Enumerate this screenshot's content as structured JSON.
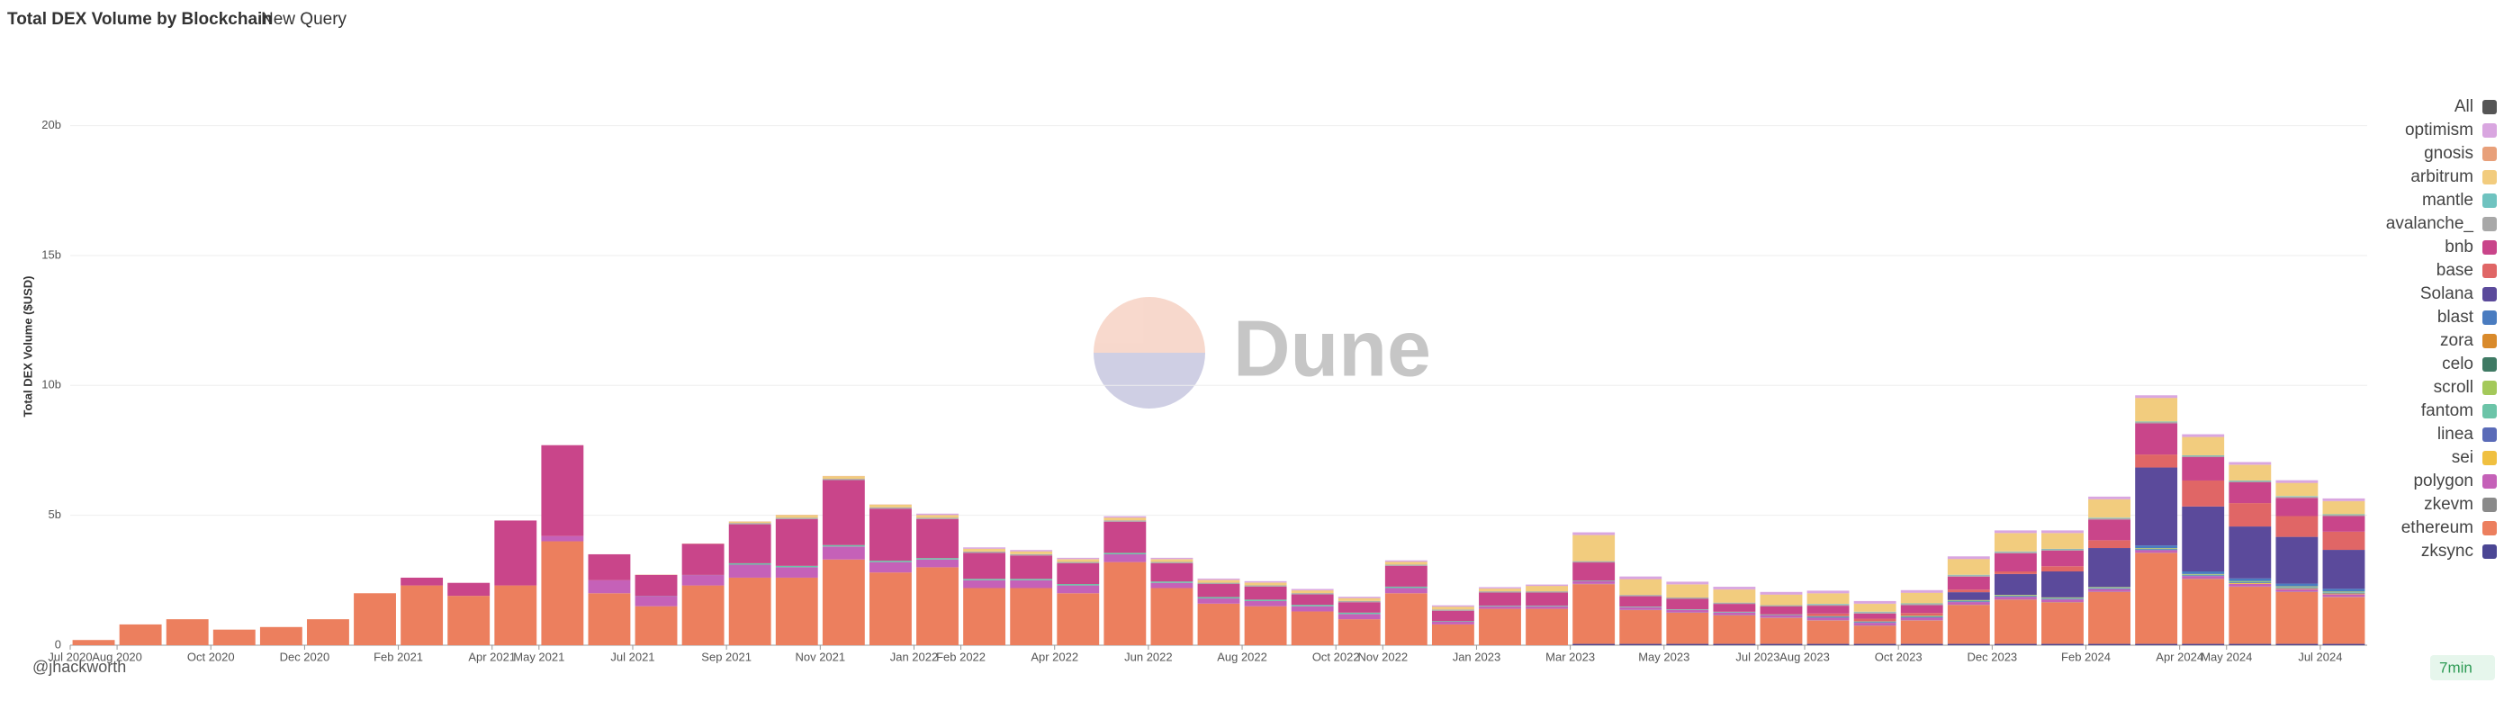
{
  "header": {
    "title": "Total DEX Volume by Blockchain",
    "tab": "New Query"
  },
  "footer": {
    "author": "@jhackworth",
    "refresh": "7min"
  },
  "chart_data": {
    "type": "stacked_bar",
    "y_label": "Total DEX Volume ($USD)",
    "watermark": "Dune",
    "legend_all": {
      "name": "All",
      "color": "#555555"
    },
    "legend_position": "right",
    "grid": true,
    "ylim": [
      0,
      23000000000.0
    ],
    "yticks": [
      0,
      {
        "value": 5000000000.0,
        "label": "5b"
      },
      {
        "value": 10000000000.0,
        "label": "10b"
      },
      {
        "value": 15000000000.0,
        "label": "15b"
      },
      {
        "value": 20000000000.0,
        "label": "20b"
      }
    ],
    "categories": [
      "Jul 2020",
      "Aug 2020",
      null,
      "Oct 2020",
      null,
      "Dec 2020",
      null,
      "Feb 2021",
      null,
      "Apr 2021",
      "May 2021",
      null,
      "Jul 2021",
      null,
      "Sep 2021",
      null,
      "Nov 2021",
      null,
      "Jan 2022",
      "Feb 2022",
      null,
      "Apr 2022",
      null,
      "Jun 2022",
      null,
      "Aug 2022",
      null,
      "Oct 2022",
      "Nov 2022",
      null,
      "Jan 2023",
      null,
      "Mar 2023",
      null,
      "May 2023",
      null,
      "Jul 2023",
      "Aug 2023",
      null,
      "Oct 2023",
      null,
      "Dec 2023",
      null,
      "Feb 2024",
      null,
      "Apr 2024",
      "May 2024",
      null,
      "Jul 2024"
    ],
    "series": [
      {
        "name": "optimism",
        "color": "#d9a6e0",
        "values": [
          0,
          0,
          0,
          0,
          0,
          0,
          0,
          0,
          0,
          0,
          0,
          0,
          0,
          0,
          0,
          0,
          0,
          0,
          50000000.0,
          50000000.0,
          50000000.0,
          50000000.0,
          50000000.0,
          50000000.0,
          50000000.0,
          50000000.0,
          50000000.0,
          50000000.0,
          50000000.0,
          50000000.0,
          50000000.0,
          50000000.0,
          100000000.0,
          100000000.0,
          100000000.0,
          100000000.0,
          100000000.0,
          100000000.0,
          100000000.0,
          100000000.0,
          100000000.0,
          100000000.0,
          100000000.0,
          100000000.0,
          100000000.0,
          100000000.0,
          100000000.0,
          100000000.0,
          100000000.0
        ]
      },
      {
        "name": "gnosis",
        "color": "#e8a07a",
        "values": [
          0,
          0,
          0,
          0,
          0,
          0,
          0,
          0,
          0,
          0,
          0,
          0,
          10000000.0,
          10000000.0,
          10000000.0,
          10000000.0,
          10000000.0,
          10000000.0,
          10000000.0,
          10000000.0,
          10000000.0,
          10000000.0,
          10000000.0,
          10000000.0,
          10000000.0,
          10000000.0,
          10000000.0,
          10000000.0,
          10000000.0,
          10000000.0,
          10000000.0,
          10000000.0,
          10000000.0,
          10000000.0,
          10000000.0,
          10000000.0,
          10000000.0,
          10000000.0,
          10000000.0,
          10000000.0,
          10000000.0,
          10000000.0,
          10000000.0,
          10000000.0,
          10000000.0,
          10000000.0,
          10000000.0,
          10000000.0,
          10000000.0
        ]
      },
      {
        "name": "arbitrum",
        "color": "#f2cc7e",
        "values": [
          0,
          0,
          0,
          0,
          0,
          0,
          0,
          0,
          0,
          0,
          0,
          0,
          0,
          0,
          50000000.0,
          100000000.0,
          100000000.0,
          100000000.0,
          100000000.0,
          100000000.0,
          100000000.0,
          100000000.0,
          100000000.0,
          100000000.0,
          100000000.0,
          100000000.0,
          100000000.0,
          100000000.0,
          100000000.0,
          100000000.0,
          100000000.0,
          200000000.0,
          1000000000.0,
          600000000.0,
          500000000.0,
          500000000.0,
          400000000.0,
          400000000.0,
          300000000.0,
          400000000.0,
          600000000.0,
          700000000.0,
          600000000.0,
          700000000.0,
          900000000.0,
          700000000.0,
          600000000.0,
          500000000.0,
          500000000.0
        ]
      },
      {
        "name": "mantle",
        "color": "#6fc3c0",
        "values": [
          0,
          0,
          0,
          0,
          0,
          0,
          0,
          0,
          0,
          0,
          0,
          0,
          0,
          0,
          0,
          0,
          0,
          0,
          0,
          0,
          0,
          0,
          0,
          0,
          0,
          0,
          0,
          0,
          0,
          0,
          0,
          0,
          0,
          0,
          0,
          0,
          0,
          20000000.0,
          20000000.0,
          20000000.0,
          20000000.0,
          20000000.0,
          20000000.0,
          20000000.0,
          20000000.0,
          20000000.0,
          20000000.0,
          20000000.0,
          20000000.0
        ]
      },
      {
        "name": "avalanche_",
        "color": "#a8a8a8",
        "values": [
          0,
          0,
          0,
          0,
          0,
          0,
          0,
          0,
          0,
          0,
          0,
          0,
          0,
          0,
          50000000.0,
          50000000.0,
          50000000.0,
          50000000.0,
          50000000.0,
          50000000.0,
          50000000.0,
          50000000.0,
          50000000.0,
          50000000.0,
          50000000.0,
          50000000.0,
          50000000.0,
          50000000.0,
          50000000.0,
          50000000.0,
          50000000.0,
          50000000.0,
          50000000.0,
          50000000.0,
          50000000.0,
          50000000.0,
          50000000.0,
          50000000.0,
          50000000.0,
          50000000.0,
          50000000.0,
          50000000.0,
          50000000.0,
          50000000.0,
          50000000.0,
          50000000.0,
          50000000.0,
          50000000.0,
          50000000.0
        ]
      },
      {
        "name": "bnb",
        "color": "#c9458a",
        "values": [
          0,
          0,
          0,
          0,
          0,
          0,
          0,
          300000000.0,
          500000000.0,
          2500000000.0,
          3500000000.0,
          1000000000.0,
          800000000.0,
          1200000000.0,
          1500000000.0,
          1800000000.0,
          2500000000.0,
          2000000000.0,
          1500000000.0,
          1000000000.0,
          900000000.0,
          800000000.0,
          1200000000.0,
          700000000.0,
          500000000.0,
          500000000.0,
          400000000.0,
          400000000.0,
          800000000.0,
          400000000.0,
          500000000.0,
          500000000.0,
          700000000.0,
          400000000.0,
          400000000.0,
          300000000.0,
          300000000.0,
          300000000.0,
          200000000.0,
          300000000.0,
          500000000.0,
          700000000.0,
          600000000.0,
          800000000.0,
          1200000000.0,
          900000000.0,
          800000000.0,
          700000000.0,
          600000000.0
        ]
      },
      {
        "name": "base",
        "color": "#e06666",
        "values": [
          0,
          0,
          0,
          0,
          0,
          0,
          0,
          0,
          0,
          0,
          0,
          0,
          0,
          0,
          0,
          0,
          0,
          0,
          0,
          0,
          0,
          0,
          0,
          0,
          0,
          0,
          0,
          0,
          0,
          0,
          0,
          0,
          0,
          0,
          0,
          0,
          0,
          100000000.0,
          100000000.0,
          100000000.0,
          100000000.0,
          100000000.0,
          200000000.0,
          300000000.0,
          500000000.0,
          1000000000.0,
          900000000.0,
          800000000.0,
          700000000.0
        ]
      },
      {
        "name": "Solana",
        "color": "#5b4a9b",
        "values": [
          0,
          0,
          0,
          0,
          0,
          0,
          0,
          0,
          0,
          0,
          0,
          0,
          0,
          0,
          0,
          0,
          0,
          0,
          0,
          0,
          0,
          0,
          0,
          0,
          0,
          0,
          0,
          0,
          0,
          0,
          0,
          0,
          0,
          0,
          0,
          0,
          0,
          0,
          0,
          0,
          300000000.0,
          800000000.0,
          1000000000.0,
          1500000000.0,
          3000000000.0,
          2500000000.0,
          2000000000.0,
          1800000000.0,
          1500000000.0
        ]
      },
      {
        "name": "blast",
        "color": "#4a7cc0",
        "values": [
          0,
          0,
          0,
          0,
          0,
          0,
          0,
          0,
          0,
          0,
          0,
          0,
          0,
          0,
          0,
          0,
          0,
          0,
          0,
          0,
          0,
          0,
          0,
          0,
          0,
          0,
          0,
          0,
          0,
          0,
          0,
          0,
          0,
          0,
          0,
          0,
          0,
          0,
          0,
          0,
          0,
          0,
          0,
          0,
          100000000.0,
          100000000.0,
          100000000.0,
          100000000.0,
          100000000.0
        ]
      },
      {
        "name": "zora",
        "color": "#d98a2b",
        "values": [
          0,
          0,
          0,
          0,
          0,
          0,
          0,
          0,
          0,
          0,
          0,
          0,
          0,
          0,
          0,
          0,
          0,
          0,
          0,
          0,
          0,
          0,
          0,
          0,
          0,
          0,
          0,
          0,
          0,
          0,
          0,
          0,
          0,
          0,
          0,
          5000000.0,
          5000000.0,
          5000000.0,
          5000000.0,
          5000000.0,
          5000000.0,
          5000000.0,
          5000000.0,
          5000000.0,
          5000000.0,
          5000000.0,
          5000000.0,
          5000000.0,
          5000000.0
        ]
      },
      {
        "name": "celo",
        "color": "#3f7a64",
        "values": [
          0,
          0,
          0,
          0,
          0,
          0,
          0,
          0,
          0,
          0,
          0,
          0,
          5000000.0,
          5000000.0,
          5000000.0,
          5000000.0,
          5000000.0,
          5000000.0,
          5000000.0,
          5000000.0,
          5000000.0,
          5000000.0,
          5000000.0,
          5000000.0,
          5000000.0,
          5000000.0,
          5000000.0,
          5000000.0,
          5000000.0,
          5000000.0,
          5000000.0,
          5000000.0,
          5000000.0,
          5000000.0,
          5000000.0,
          5000000.0,
          5000000.0,
          5000000.0,
          5000000.0,
          5000000.0,
          5000000.0,
          5000000.0,
          5000000.0,
          5000000.0,
          5000000.0,
          5000000.0,
          5000000.0,
          5000000.0,
          5000000.0
        ]
      },
      {
        "name": "scroll",
        "color": "#a4c95a",
        "values": [
          0,
          0,
          0,
          0,
          0,
          0,
          0,
          0,
          0,
          0,
          0,
          0,
          0,
          0,
          0,
          0,
          0,
          0,
          0,
          0,
          0,
          0,
          0,
          0,
          0,
          0,
          0,
          0,
          0,
          0,
          0,
          0,
          0,
          0,
          0,
          0,
          0,
          0,
          0,
          20000000.0,
          20000000.0,
          20000000.0,
          20000000.0,
          20000000.0,
          20000000.0,
          20000000.0,
          20000000.0,
          20000000.0,
          20000000.0
        ]
      },
      {
        "name": "fantom",
        "color": "#6cc4a8",
        "values": [
          0,
          0,
          0,
          0,
          0,
          0,
          0,
          0,
          0,
          0,
          0,
          0,
          0,
          0,
          50000000.0,
          50000000.0,
          50000000.0,
          50000000.0,
          50000000.0,
          50000000.0,
          50000000.0,
          50000000.0,
          50000000.0,
          50000000.0,
          50000000.0,
          50000000.0,
          50000000.0,
          50000000.0,
          50000000.0,
          20000000.0,
          20000000.0,
          20000000.0,
          20000000.0,
          20000000.0,
          20000000.0,
          20000000.0,
          20000000.0,
          20000000.0,
          20000000.0,
          20000000.0,
          20000000.0,
          20000000.0,
          20000000.0,
          20000000.0,
          20000000.0,
          20000000.0,
          20000000.0,
          20000000.0,
          20000000.0
        ]
      },
      {
        "name": "linea",
        "color": "#5a6bb8",
        "values": [
          0,
          0,
          0,
          0,
          0,
          0,
          0,
          0,
          0,
          0,
          0,
          0,
          0,
          0,
          0,
          0,
          0,
          0,
          0,
          0,
          0,
          0,
          0,
          0,
          0,
          0,
          0,
          0,
          0,
          0,
          0,
          0,
          0,
          0,
          0,
          0,
          0,
          30000000.0,
          30000000.0,
          30000000.0,
          30000000.0,
          30000000.0,
          30000000.0,
          30000000.0,
          30000000.0,
          30000000.0,
          30000000.0,
          30000000.0,
          30000000.0
        ]
      },
      {
        "name": "sei",
        "color": "#f0c040",
        "values": [
          0,
          0,
          0,
          0,
          0,
          0,
          0,
          0,
          0,
          0,
          0,
          0,
          0,
          0,
          0,
          0,
          0,
          0,
          0,
          0,
          0,
          0,
          0,
          0,
          0,
          0,
          0,
          0,
          0,
          0,
          0,
          0,
          0,
          0,
          0,
          0,
          0,
          0,
          0,
          0,
          0,
          0,
          0,
          0,
          0,
          0,
          30000000.0,
          30000000.0,
          30000000.0
        ]
      },
      {
        "name": "polygon",
        "color": "#c561b8",
        "values": [
          0,
          0,
          0,
          0,
          0,
          0,
          0,
          0,
          0,
          0,
          200000000.0,
          500000000.0,
          400000000.0,
          400000000.0,
          500000000.0,
          400000000.0,
          500000000.0,
          400000000.0,
          300000000.0,
          300000000.0,
          300000000.0,
          300000000.0,
          300000000.0,
          200000000.0,
          200000000.0,
          200000000.0,
          200000000.0,
          200000000.0,
          200000000.0,
          100000000.0,
          100000000.0,
          100000000.0,
          100000000.0,
          100000000.0,
          100000000.0,
          100000000.0,
          100000000.0,
          100000000.0,
          100000000.0,
          100000000.0,
          100000000.0,
          100000000.0,
          100000000.0,
          100000000.0,
          100000000.0,
          100000000.0,
          100000000.0,
          100000000.0,
          100000000.0
        ]
      },
      {
        "name": "zkevm",
        "color": "#8a8a8a",
        "values": [
          0,
          0,
          0,
          0,
          0,
          0,
          0,
          0,
          0,
          0,
          0,
          0,
          0,
          0,
          0,
          0,
          0,
          0,
          0,
          0,
          0,
          0,
          0,
          0,
          0,
          0,
          0,
          0,
          0,
          0,
          0,
          0,
          10000000.0,
          10000000.0,
          10000000.0,
          10000000.0,
          10000000.0,
          10000000.0,
          10000000.0,
          10000000.0,
          10000000.0,
          10000000.0,
          10000000.0,
          10000000.0,
          10000000.0,
          10000000.0,
          10000000.0,
          10000000.0,
          10000000.0
        ]
      },
      {
        "name": "ethereum",
        "color": "#ec7f5e",
        "values": [
          200000000.0,
          800000000.0,
          1000000000.0,
          600000000.0,
          700000000.0,
          1000000000.0,
          2000000000.0,
          2300000000.0,
          1900000000.0,
          2300000000.0,
          4000000000.0,
          2000000000.0,
          1500000000.0,
          2300000000.0,
          2600000000.0,
          2600000000.0,
          3300000000.0,
          2800000000.0,
          3000000000.0,
          2200000000.0,
          2200000000.0,
          2000000000.0,
          3200000000.0,
          2200000000.0,
          1600000000.0,
          1500000000.0,
          1300000000.0,
          1000000000.0,
          2000000000.0,
          800000000.0,
          1400000000.0,
          1400000000.0,
          2300000000.0,
          1300000000.0,
          1200000000.0,
          1100000000.0,
          1000000000.0,
          900000000.0,
          700000000.0,
          900000000.0,
          1500000000.0,
          1700000000.0,
          1600000000.0,
          2000000000.0,
          3500000000.0,
          2500000000.0,
          2200000000.0,
          2000000000.0,
          1800000000.0
        ]
      },
      {
        "name": "zksync",
        "color": "#4b4694",
        "values": [
          0,
          0,
          0,
          0,
          0,
          0,
          0,
          0,
          0,
          0,
          0,
          0,
          0,
          0,
          0,
          0,
          0,
          0,
          0,
          0,
          0,
          0,
          0,
          0,
          0,
          0,
          0,
          0,
          0,
          0,
          0,
          0,
          50000000.0,
          50000000.0,
          50000000.0,
          50000000.0,
          50000000.0,
          50000000.0,
          50000000.0,
          50000000.0,
          50000000.0,
          50000000.0,
          50000000.0,
          50000000.0,
          50000000.0,
          50000000.0,
          50000000.0,
          50000000.0,
          50000000.0
        ]
      }
    ]
  }
}
